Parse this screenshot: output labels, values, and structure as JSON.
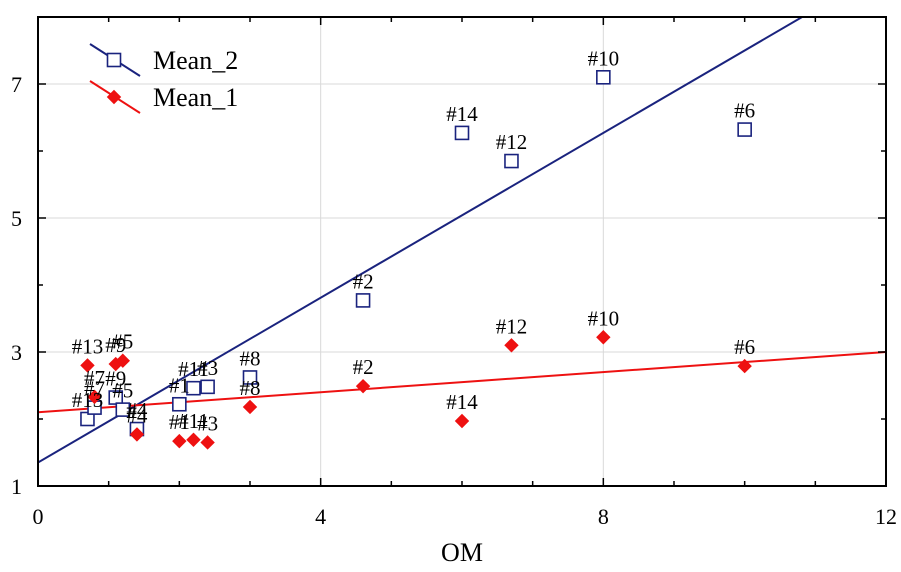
{
  "chart_data": {
    "type": "scatter",
    "title": "",
    "xlabel": "OM",
    "ylabel": "",
    "xlim": [
      0,
      12
    ],
    "ylim": [
      1,
      8
    ],
    "xticks": [
      0,
      4,
      8,
      12
    ],
    "yticks": [
      1,
      3,
      5,
      7
    ],
    "x_minor_step": 1,
    "y_minor_step": 1,
    "grid": true,
    "legend_position": "top-left",
    "series": [
      {
        "name": "Mean_2",
        "marker": "open-square",
        "color": "#1a237e",
        "fit": {
          "intercept": 1.35,
          "slope": 0.615
        },
        "points": [
          {
            "x": 0.7,
            "y": 2.0,
            "label": "#13"
          },
          {
            "x": 0.8,
            "y": 2.17,
            "label": "#7"
          },
          {
            "x": 1.1,
            "y": 2.32,
            "label": "#9"
          },
          {
            "x": 1.2,
            "y": 2.14,
            "label": "#5"
          },
          {
            "x": 1.4,
            "y": 1.85,
            "label": "#4"
          },
          {
            "x": 2.0,
            "y": 2.22,
            "label": "#1"
          },
          {
            "x": 2.2,
            "y": 2.46,
            "label": "#11"
          },
          {
            "x": 2.4,
            "y": 2.48,
            "label": "#3"
          },
          {
            "x": 3.0,
            "y": 2.62,
            "label": "#8"
          },
          {
            "x": 4.6,
            "y": 3.77,
            "label": "#2"
          },
          {
            "x": 6.0,
            "y": 6.27,
            "label": "#14"
          },
          {
            "x": 6.7,
            "y": 5.85,
            "label": "#12"
          },
          {
            "x": 8.0,
            "y": 7.1,
            "label": "#10"
          },
          {
            "x": 10.0,
            "y": 6.32,
            "label": "#6"
          }
        ]
      },
      {
        "name": "Mean_1",
        "marker": "filled-diamond",
        "color": "#ee1111",
        "fit": {
          "intercept": 2.1,
          "slope": 0.075
        },
        "points": [
          {
            "x": 0.7,
            "y": 2.8,
            "label": "#13"
          },
          {
            "x": 0.8,
            "y": 2.33,
            "label": "#7"
          },
          {
            "x": 1.1,
            "y": 2.82,
            "label": "#9"
          },
          {
            "x": 1.2,
            "y": 2.87,
            "label": "#5"
          },
          {
            "x": 1.4,
            "y": 1.77,
            "label": "#4"
          },
          {
            "x": 2.0,
            "y": 1.67,
            "label": "#1"
          },
          {
            "x": 2.2,
            "y": 1.69,
            "label": "#11"
          },
          {
            "x": 2.4,
            "y": 1.65,
            "label": "#3"
          },
          {
            "x": 3.0,
            "y": 2.18,
            "label": "#8"
          },
          {
            "x": 4.6,
            "y": 2.49,
            "label": "#2"
          },
          {
            "x": 6.0,
            "y": 1.97,
            "label": "#14"
          },
          {
            "x": 6.7,
            "y": 3.1,
            "label": "#12"
          },
          {
            "x": 8.0,
            "y": 3.22,
            "label": "#10"
          },
          {
            "x": 10.0,
            "y": 2.79,
            "label": "#6"
          }
        ]
      }
    ]
  }
}
